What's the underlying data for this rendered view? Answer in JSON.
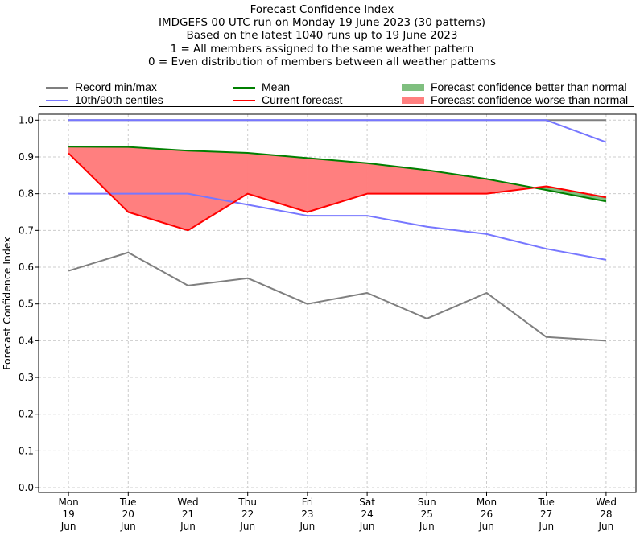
{
  "chart_data": {
    "type": "line",
    "title_lines": [
      "Forecast Confidence Index",
      "IMDGEFS 00 UTC run on Monday 19 June 2023 (30 patterns)",
      "Based on the latest 1040 runs up to 19 June 2023",
      "1 = All members assigned to the same weather pattern",
      "0 = Even distribution of members between all weather patterns"
    ],
    "ylabel": "Forecast Confidence Index",
    "xlabel": "",
    "ylim": [
      -0.013,
      1.016
    ],
    "xlim": [
      -0.5,
      9.5
    ],
    "grid": true,
    "yticks": [
      "0.0",
      "0.1",
      "0.2",
      "0.3",
      "0.4",
      "0.5",
      "0.6",
      "0.7",
      "0.8",
      "0.9",
      "1.0"
    ],
    "categories": [
      [
        "Mon",
        "19",
        "Jun"
      ],
      [
        "Tue",
        "20",
        "Jun"
      ],
      [
        "Wed",
        "21",
        "Jun"
      ],
      [
        "Thu",
        "22",
        "Jun"
      ],
      [
        "Fri",
        "23",
        "Jun"
      ],
      [
        "Sat",
        "24",
        "Jun"
      ],
      [
        "Sun",
        "25",
        "Jun"
      ],
      [
        "Mon",
        "26",
        "Jun"
      ],
      [
        "Tue",
        "27",
        "Jun"
      ],
      [
        "Wed",
        "28",
        "Jun"
      ]
    ],
    "series": [
      {
        "name": "Record min",
        "color": "#7f7f7f",
        "values": [
          0.59,
          0.64,
          0.55,
          0.57,
          0.5,
          0.53,
          0.46,
          0.53,
          0.41,
          0.4
        ]
      },
      {
        "name": "Record max",
        "color": "#7f7f7f",
        "values": [
          1.0,
          1.0,
          1.0,
          1.0,
          1.0,
          1.0,
          1.0,
          1.0,
          1.0,
          1.0
        ]
      },
      {
        "name": "10th centile",
        "color": "#7777ff",
        "values": [
          0.8,
          0.8,
          0.8,
          0.77,
          0.74,
          0.74,
          0.71,
          0.69,
          0.65,
          0.62
        ]
      },
      {
        "name": "90th centile",
        "color": "#7777ff",
        "values": [
          1.0,
          1.0,
          1.0,
          1.0,
          1.0,
          1.0,
          1.0,
          1.0,
          1.0,
          0.94
        ]
      },
      {
        "name": "Mean",
        "color": "#007f00",
        "values": [
          0.928,
          0.927,
          0.917,
          0.911,
          0.897,
          0.883,
          0.864,
          0.84,
          0.81,
          0.779
        ]
      },
      {
        "name": "Current forecast",
        "color": "#ff0000",
        "values": [
          0.91,
          0.75,
          0.7,
          0.8,
          0.75,
          0.8,
          0.8,
          0.8,
          0.82,
          0.79
        ]
      }
    ],
    "fill_colors": {
      "better": "#7fbf7f",
      "worse": "#ff7f7f"
    },
    "legend": {
      "placement": "top",
      "entries": [
        {
          "label": "Record min/max",
          "color": "#7f7f7f",
          "kind": "line"
        },
        {
          "label": "10th/90th centiles",
          "color": "#7777ff",
          "kind": "line"
        },
        {
          "label": "Mean",
          "color": "#007f00",
          "kind": "line"
        },
        {
          "label": "Current forecast",
          "color": "#ff0000",
          "kind": "line"
        },
        {
          "label": "Forecast confidence better than normal",
          "color": "#7fbf7f",
          "kind": "box"
        },
        {
          "label": "Forecast confidence worse than normal",
          "color": "#ff7f7f",
          "kind": "box"
        }
      ]
    }
  }
}
